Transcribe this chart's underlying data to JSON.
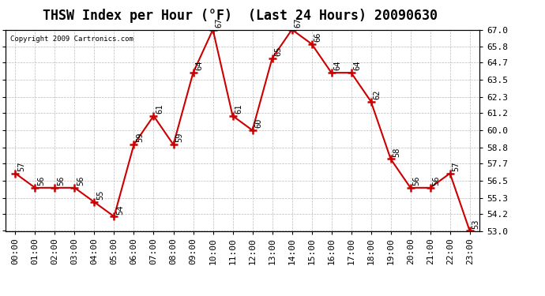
{
  "title": "THSW Index per Hour (°F)  (Last 24 Hours) 20090630",
  "copyright": "Copyright 2009 Cartronics.com",
  "hours": [
    "00:00",
    "01:00",
    "02:00",
    "03:00",
    "04:00",
    "05:00",
    "06:00",
    "07:00",
    "08:00",
    "09:00",
    "10:00",
    "11:00",
    "12:00",
    "13:00",
    "14:00",
    "15:00",
    "16:00",
    "17:00",
    "18:00",
    "19:00",
    "20:00",
    "21:00",
    "22:00",
    "23:00"
  ],
  "values": [
    57,
    56,
    56,
    56,
    55,
    54,
    59,
    61,
    59,
    64,
    67,
    61,
    60,
    65,
    67,
    66,
    64,
    64,
    62,
    58,
    56,
    56,
    57,
    53
  ],
  "ylim_min": 53.0,
  "ylim_max": 67.0,
  "yticks": [
    53.0,
    54.2,
    55.3,
    56.5,
    57.7,
    58.8,
    60.0,
    61.2,
    62.3,
    63.5,
    64.7,
    65.8,
    67.0
  ],
  "line_color": "#cc0000",
  "marker_color": "#cc0000",
  "bg_color": "#ffffff",
  "grid_color": "#bbbbbb",
  "title_fontsize": 12,
  "label_fontsize": 8,
  "annotation_fontsize": 7.5
}
